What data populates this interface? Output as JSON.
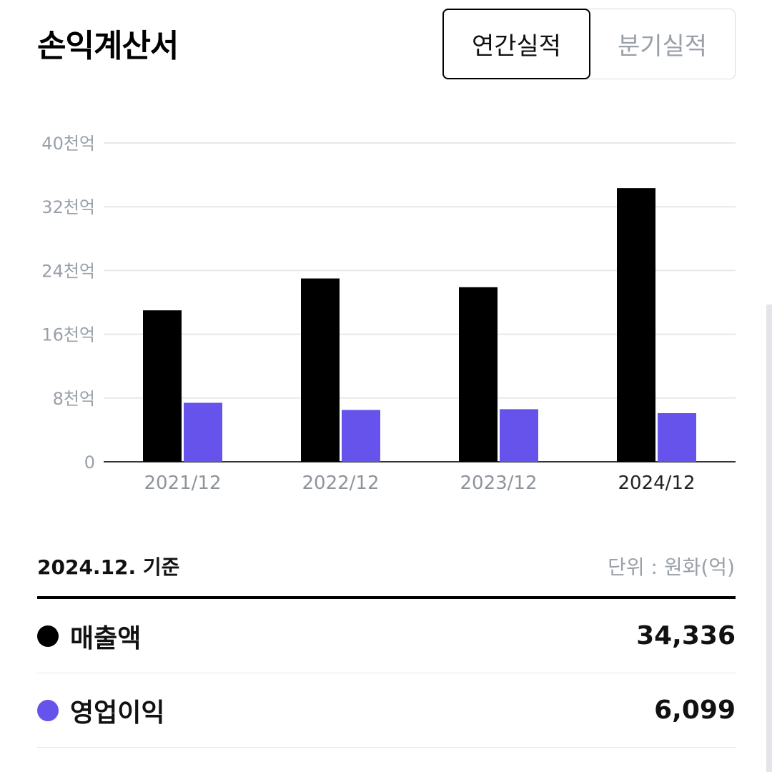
{
  "header": {
    "title": "손익계산서",
    "tabs": [
      {
        "label": "연간실적",
        "active": true
      },
      {
        "label": "분기실적",
        "active": false
      }
    ]
  },
  "chart_data": {
    "type": "bar",
    "categories": [
      "2021/12",
      "2022/12",
      "2023/12",
      "2024/12"
    ],
    "highlighted_category": "2024/12",
    "series": [
      {
        "name": "매출액",
        "color": "#000000",
        "values": [
          19000,
          23000,
          21900,
          34336
        ]
      },
      {
        "name": "영업이익",
        "color": "#6553ec",
        "values": [
          7400,
          6500,
          6600,
          6099
        ]
      }
    ],
    "y_ticks": [
      {
        "value": 40000,
        "label": "40천억"
      },
      {
        "value": 32000,
        "label": "32천억"
      },
      {
        "value": 24000,
        "label": "24천억"
      },
      {
        "value": 16000,
        "label": "16천억"
      },
      {
        "value": 8000,
        "label": "8천억"
      },
      {
        "value": 0,
        "label": "0"
      }
    ],
    "ylim": [
      0,
      40000
    ],
    "grid": true,
    "title": "",
    "xlabel": "",
    "ylabel": ""
  },
  "summary": {
    "basis": "2024.12. 기준",
    "unit": "단위 : 원화(억)",
    "rows": [
      {
        "label": "매출액",
        "value": "34,336",
        "color": "#000000"
      },
      {
        "label": "영업이익",
        "value": "6,099",
        "color": "#6553ec"
      }
    ]
  }
}
